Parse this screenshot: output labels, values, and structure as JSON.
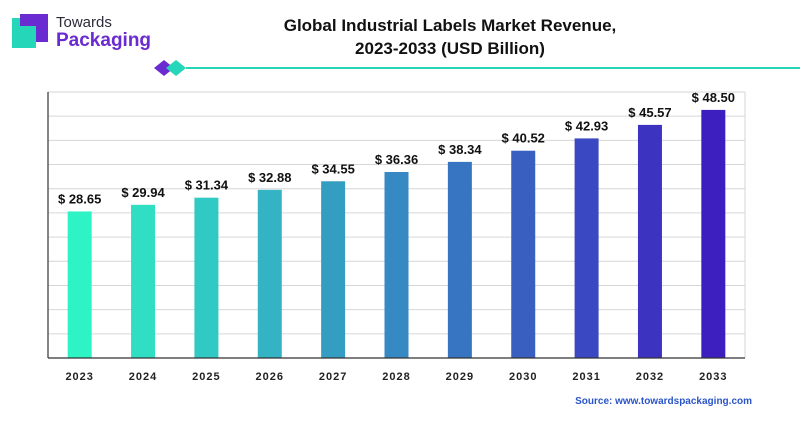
{
  "logo": {
    "line1": "Towards",
    "line2": "Packaging"
  },
  "source": "Source: www.towardspackaging.com",
  "colors": {
    "brand_purple": "#6a2bd0",
    "accent_teal": "#26d6b8",
    "bar_gradient_start": "#2ef3c4",
    "bar_gradient_end": "#3d1fc0",
    "grid": "#d6d6d6"
  },
  "chart_data": {
    "type": "bar",
    "title": "Global Industrial Labels Market Revenue, 2023-2033 (USD Billion)",
    "title_lines": [
      "Global Industrial Labels Market Revenue,",
      "2023-2033 (USD Billion)"
    ],
    "categories": [
      "2023",
      "2024",
      "2025",
      "2026",
      "2027",
      "2028",
      "2029",
      "2030",
      "2031",
      "2032",
      "2033"
    ],
    "values": [
      28.65,
      29.94,
      31.34,
      32.88,
      34.55,
      36.36,
      38.34,
      40.52,
      42.93,
      45.57,
      48.5
    ],
    "value_labels": [
      "$ 28.65",
      "$ 29.94",
      "$ 31.34",
      "$ 32.88",
      "$ 34.55",
      "$ 36.36",
      "$ 38.34",
      "$ 40.52",
      "$ 42.93",
      "$ 45.57",
      "$ 48.50"
    ],
    "ylim": [
      0,
      52
    ],
    "grid": true,
    "y_tick_labels_shown": false
  }
}
